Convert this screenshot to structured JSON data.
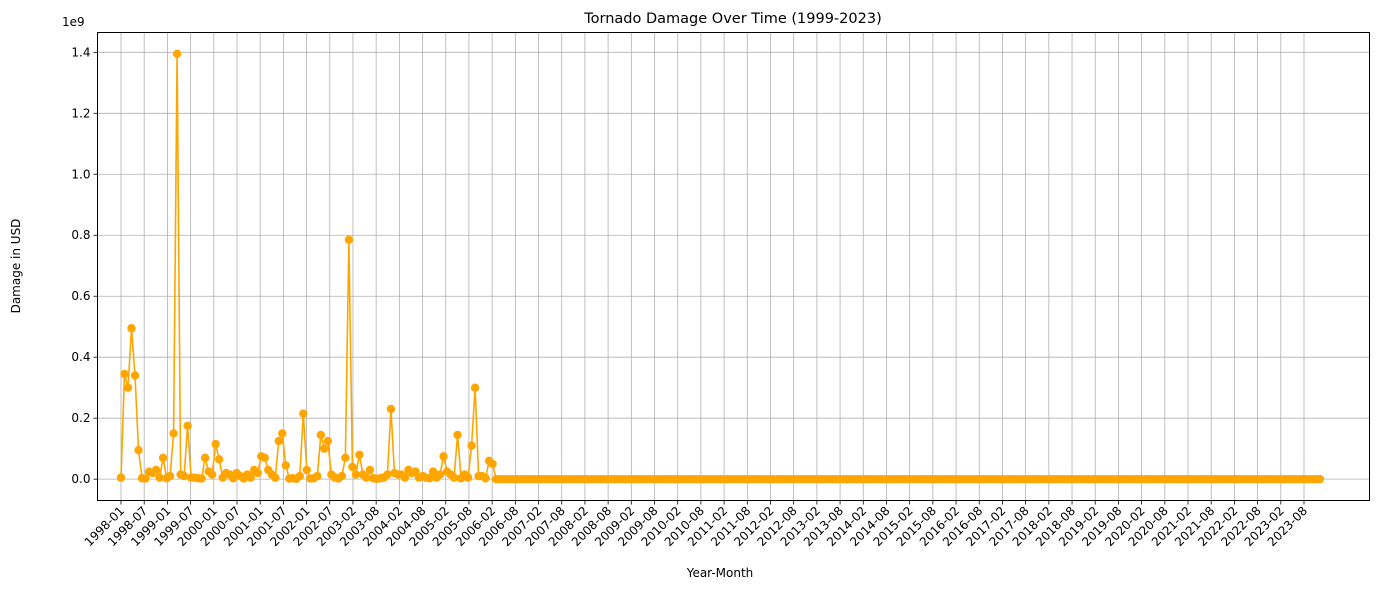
{
  "chart_data": {
    "type": "line",
    "title": "Tornado Damage Over Time (1999-2023)",
    "xlabel": "Year-Month",
    "ylabel": "Damage in USD",
    "y_scale_label": "1e9",
    "y_ticks": [
      0.0,
      0.2,
      0.4,
      0.6,
      0.8,
      1.0,
      1.2,
      1.4
    ],
    "y_tick_labels": [
      "0.0",
      "0.2",
      "0.4",
      "0.6",
      "0.8",
      "1.0",
      "1.2",
      "1.4"
    ],
    "ylim": [
      -0.07,
      1.465
    ],
    "y_units_multiplier": 1000000000,
    "x_tick_labels": [
      "1998-01",
      "1998-07",
      "1999-01",
      "1999-07",
      "2000-01",
      "2000-07",
      "2001-01",
      "2001-07",
      "2002-01",
      "2002-07",
      "2003-02",
      "2003-08",
      "2004-02",
      "2004-08",
      "2005-02",
      "2005-08",
      "2006-02",
      "2006-08",
      "2007-02",
      "2007-08",
      "2008-02",
      "2008-08",
      "2009-02",
      "2009-08",
      "2010-02",
      "2010-08",
      "2011-02",
      "2011-08",
      "2012-02",
      "2012-08",
      "2013-02",
      "2013-08",
      "2014-02",
      "2014-08",
      "2015-02",
      "2015-08",
      "2016-02",
      "2016-08",
      "2017-02",
      "2017-08",
      "2018-02",
      "2018-08",
      "2019-02",
      "2019-08",
      "2020-02",
      "2020-08",
      "2021-02",
      "2021-08",
      "2022-02",
      "2022-08",
      "2023-02",
      "2023-08"
    ],
    "grid": true,
    "line_color": "#ffa500",
    "marker": "circle",
    "series": [
      {
        "values": [
          0.005,
          0.345,
          0.3,
          0.495,
          0.34,
          0.095,
          0.003,
          0.002,
          0.025,
          0.02,
          0.03,
          0.005,
          0.07,
          0.003,
          0.01,
          0.15,
          1.395,
          0.015,
          0.01,
          0.175,
          0.005,
          0.005,
          0.003,
          0.002,
          0.07,
          0.025,
          0.015,
          0.115,
          0.065,
          0.005,
          0.02,
          0.015,
          0.003,
          0.02,
          0.01,
          0.002,
          0.015,
          0.005,
          0.03,
          0.02,
          0.075,
          0.07,
          0.03,
          0.015,
          0.005,
          0.125,
          0.15,
          0.045,
          0.002,
          0.003,
          0.001,
          0.01,
          0.215,
          0.03,
          0.002,
          0.003,
          0.01,
          0.145,
          0.1,
          0.125,
          0.015,
          0.005,
          0.002,
          0.01,
          0.07,
          0.785,
          0.04,
          0.015,
          0.08,
          0.015,
          0.005,
          0.03,
          0.003,
          0.001,
          0.003,
          0.005,
          0.015,
          0.23,
          0.02,
          0.015,
          0.015,
          0.005,
          0.03,
          0.02,
          0.025,
          0.005,
          0.01,
          0.005,
          0.003,
          0.025,
          0.005,
          0.015,
          0.075,
          0.025,
          0.015,
          0.005,
          0.145,
          0.003,
          0.015,
          0.005,
          0.11,
          0.3,
          0.01,
          0.01,
          0.003,
          0.06,
          0.05,
          0,
          0,
          0,
          0,
          0,
          0,
          0,
          0,
          0,
          0,
          0,
          0,
          0,
          0,
          0,
          0,
          0,
          0,
          0,
          0,
          0,
          0,
          0,
          0,
          0,
          0,
          0,
          0,
          0,
          0,
          0,
          0,
          0,
          0,
          0,
          0,
          0,
          0,
          0,
          0,
          0,
          0,
          0,
          0,
          0,
          0,
          0,
          0,
          0,
          0,
          0,
          0,
          0,
          0,
          0,
          0,
          0,
          0,
          0,
          0,
          0,
          0,
          0,
          0,
          0,
          0,
          0,
          0,
          0,
          0,
          0,
          0,
          0,
          0,
          0,
          0,
          0,
          0,
          0,
          0,
          0,
          0,
          0,
          0,
          0,
          0,
          0,
          0,
          0,
          0,
          0,
          0,
          0,
          0,
          0,
          0,
          0,
          0,
          0,
          0,
          0,
          0,
          0,
          0,
          0,
          0,
          0,
          0,
          0,
          0,
          0,
          0,
          0,
          0,
          0,
          0,
          0,
          0,
          0,
          0,
          0,
          0,
          0,
          0,
          0,
          0,
          0,
          0,
          0,
          0,
          0,
          0,
          0,
          0,
          0,
          0,
          0,
          0,
          0,
          0,
          0,
          0,
          0,
          0,
          0,
          0,
          0,
          0,
          0,
          0,
          0,
          0,
          0,
          0,
          0,
          0,
          0,
          0,
          0,
          0,
          0,
          0,
          0,
          0,
          0,
          0,
          0,
          0,
          0,
          0,
          0,
          0,
          0,
          0,
          0,
          0,
          0,
          0,
          0,
          0,
          0,
          0,
          0,
          0,
          0,
          0,
          0,
          0,
          0,
          0,
          0,
          0,
          0,
          0,
          0,
          0,
          0,
          0,
          0,
          0,
          0,
          0,
          0,
          0,
          0,
          0,
          0,
          0,
          0,
          0,
          0,
          0,
          0,
          0,
          0,
          0,
          0,
          0,
          0,
          0,
          0,
          0,
          0,
          0,
          0,
          0,
          0,
          0,
          0,
          0,
          0,
          0,
          0,
          0,
          0,
          0
        ]
      }
    ]
  }
}
